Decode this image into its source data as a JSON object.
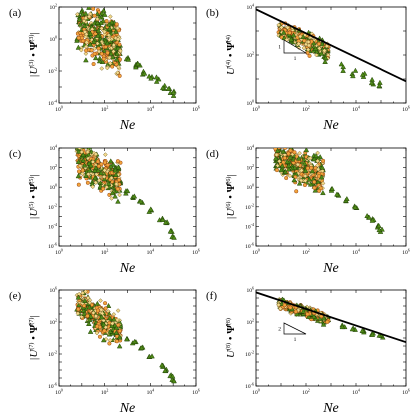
{
  "colors": {
    "triangle_fill": "#4f8a17",
    "triangle_stroke": "#1c3b05",
    "circle_fill": "#f2a33a",
    "circle_stroke": "#8a3a10",
    "diamond_fill": "#f3d98a",
    "diamond_stroke": "#6b5a20",
    "fit_line": "#000000"
  },
  "chart_data": [
    {
      "type": "scatter",
      "panel": "(a)",
      "xlabel": "Ne",
      "ylabel_lhs": "|U",
      "ylabel_sup": "(3)",
      "ylabel_rhs": "|",
      "ylabel_psi_sup": "(3)",
      "xscale": "log",
      "yscale": "log",
      "xlim": [
        1,
        1000000
      ],
      "ylim": [
        0.0001,
        100
      ],
      "x_ticks": [
        {
          "base": "10",
          "exp": "0"
        },
        {
          "base": "10",
          "exp": "2"
        },
        {
          "base": "10",
          "exp": "4"
        },
        {
          "base": "10",
          "exp": "6"
        }
      ],
      "y_ticks": [
        {
          "base": "10",
          "exp": "-4"
        },
        {
          "base": "10",
          "exp": "-2"
        },
        {
          "base": "10",
          "exp": "0"
        },
        {
          "base": "10",
          "exp": "2"
        }
      ],
      "cluster": {
        "x_range": [
          6,
          500
        ],
        "y_at_x6": 7,
        "slope": -0.75,
        "spread_decades": 2.2
      },
      "tail": [
        [
          1000,
          0.05
        ],
        [
          2000,
          0.02
        ],
        [
          3000,
          0.03
        ],
        [
          5000,
          0.008
        ],
        [
          10000,
          0.004
        ],
        [
          20000,
          0.003
        ],
        [
          40000,
          0.001
        ],
        [
          70000,
          0.0006
        ],
        [
          100000,
          0.0004
        ]
      ],
      "slope_triangle": null,
      "fit_line": null
    },
    {
      "type": "scatter",
      "panel": "(b)",
      "xlabel": "Ne",
      "ylabel_lhs": "U",
      "ylabel_sup": "(4)",
      "ylabel_rhs": "",
      "ylabel_psi_sup": "(4)",
      "xscale": "log",
      "yscale": "log",
      "xlim": [
        1,
        1000000
      ],
      "ylim": [
        1,
        10000
      ],
      "x_ticks": [
        {
          "base": "10",
          "exp": "0"
        },
        {
          "base": "10",
          "exp": "2"
        },
        {
          "base": "10",
          "exp": "4"
        },
        {
          "base": "10",
          "exp": "6"
        }
      ],
      "y_ticks": [
        {
          "base": "10",
          "exp": "0"
        },
        {
          "base": "10",
          "exp": "2"
        },
        {
          "base": "10",
          "exp": "4"
        }
      ],
      "cluster": {
        "x_range": [
          8,
          800
        ],
        "y_at_x6": 1500,
        "slope": -0.5,
        "spread_decades": 0.45
      },
      "tail": [
        [
          3000,
          30
        ],
        [
          8000,
          18
        ],
        [
          20000,
          12
        ],
        [
          50000,
          8
        ],
        [
          100000,
          6
        ]
      ],
      "slope_triangle": {
        "label_vertical": "1",
        "label_horizontal": "1"
      },
      "fit_line": {
        "x": [
          1,
          1000000
        ],
        "y": [
          8000,
          8
        ]
      }
    },
    {
      "type": "scatter",
      "panel": "(c)",
      "xlabel": "Ne",
      "ylabel_lhs": "|U",
      "ylabel_sup": "(5)",
      "ylabel_rhs": "|",
      "ylabel_psi_sup": "(5)",
      "xscale": "log",
      "yscale": "log",
      "xlim": [
        1,
        1000000
      ],
      "ylim": [
        1e-06,
        10000
      ],
      "x_ticks": [
        {
          "base": "10",
          "exp": "0"
        },
        {
          "base": "10",
          "exp": "2"
        },
        {
          "base": "10",
          "exp": "4"
        },
        {
          "base": "10",
          "exp": "6"
        }
      ],
      "y_ticks": [
        {
          "base": "10",
          "exp": "-6"
        },
        {
          "base": "10",
          "exp": "-4"
        },
        {
          "base": "10",
          "exp": "-2"
        },
        {
          "base": "10",
          "exp": "0"
        },
        {
          "base": "10",
          "exp": "2"
        },
        {
          "base": "10",
          "exp": "4"
        }
      ],
      "cluster": {
        "x_range": [
          6,
          500
        ],
        "y_at_x6": 1500,
        "slope": -1.4,
        "spread_decades": 2.4
      },
      "tail": [
        [
          1000,
          0.3
        ],
        [
          2000,
          0.1
        ],
        [
          4000,
          0.03
        ],
        [
          10000,
          0.004
        ],
        [
          30000,
          0.0005
        ],
        [
          50000,
          0.0002
        ],
        [
          80000,
          4e-05
        ],
        [
          100000,
          1e-05
        ]
      ],
      "slope_triangle": null,
      "fit_line": null
    },
    {
      "type": "scatter",
      "panel": "(d)",
      "xlabel": "Ne",
      "ylabel_lhs": "|U",
      "ylabel_sup": "(6)",
      "ylabel_rhs": "|",
      "ylabel_psi_sup": "(6)",
      "xscale": "log",
      "yscale": "log",
      "xlim": [
        1,
        1000000
      ],
      "ylim": [
        1e-06,
        10000
      ],
      "x_ticks": [
        {
          "base": "10",
          "exp": "0"
        },
        {
          "base": "10",
          "exp": "2"
        },
        {
          "base": "10",
          "exp": "4"
        },
        {
          "base": "10",
          "exp": "6"
        }
      ],
      "y_ticks": [
        {
          "base": "10",
          "exp": "-6"
        },
        {
          "base": "10",
          "exp": "-4"
        },
        {
          "base": "10",
          "exp": "-2"
        },
        {
          "base": "10",
          "exp": "0"
        },
        {
          "base": "10",
          "exp": "2"
        },
        {
          "base": "10",
          "exp": "4"
        }
      ],
      "cluster": {
        "x_range": [
          6,
          500
        ],
        "y_at_x6": 2000,
        "slope": -1.3,
        "spread_decades": 2.4
      },
      "tail": [
        [
          1000,
          0.5
        ],
        [
          2000,
          0.2
        ],
        [
          4000,
          0.05
        ],
        [
          10000,
          0.01
        ],
        [
          30000,
          0.001
        ],
        [
          50000,
          0.0005
        ],
        [
          80000,
          0.0001
        ],
        [
          100000,
          4e-05
        ]
      ],
      "slope_triangle": null,
      "fit_line": null
    },
    {
      "type": "scatter",
      "panel": "(e)",
      "xlabel": "Ne",
      "ylabel_lhs": "|U",
      "ylabel_sup": "(7)",
      "ylabel_rhs": "|",
      "ylabel_psi_sup": "(7)",
      "xscale": "log",
      "yscale": "log",
      "xlim": [
        1,
        1000000
      ],
      "ylim": [
        1e-06,
        1000000
      ],
      "x_ticks": [
        {
          "base": "10",
          "exp": "0"
        },
        {
          "base": "10",
          "exp": "2"
        },
        {
          "base": "10",
          "exp": "4"
        },
        {
          "base": "10",
          "exp": "6"
        }
      ],
      "y_ticks": [
        {
          "base": "10",
          "exp": "-6"
        },
        {
          "base": "10",
          "exp": "-2"
        },
        {
          "base": "10",
          "exp": "2"
        },
        {
          "base": "10",
          "exp": "6"
        }
      ],
      "cluster": {
        "x_range": [
          6,
          500
        ],
        "y_at_x6": 20000,
        "slope": -1.8,
        "spread_decades": 2.6
      },
      "tail": [
        [
          1000,
          1
        ],
        [
          2000,
          0.3
        ],
        [
          4000,
          0.05
        ],
        [
          10000,
          0.005
        ],
        [
          30000,
          0.0003
        ],
        [
          50000,
          0.0001
        ],
        [
          80000,
          2e-05
        ],
        [
          100000,
          5e-06
        ]
      ],
      "slope_triangle": null,
      "fit_line": null
    },
    {
      "type": "scatter",
      "panel": "(f)",
      "xlabel": "Ne",
      "ylabel_lhs": "U",
      "ylabel_sup": "(8)",
      "ylabel_rhs": "",
      "ylabel_psi_sup": "(8)",
      "xscale": "log",
      "yscale": "log",
      "xlim": [
        1,
        1000000
      ],
      "ylim": [
        1e-06,
        1000000
      ],
      "x_ticks": [
        {
          "base": "10",
          "exp": "0"
        },
        {
          "base": "10",
          "exp": "2"
        },
        {
          "base": "10",
          "exp": "4"
        },
        {
          "base": "10",
          "exp": "6"
        }
      ],
      "y_ticks": [
        {
          "base": "10",
          "exp": "-6"
        },
        {
          "base": "10",
          "exp": "-2"
        },
        {
          "base": "10",
          "exp": "2"
        },
        {
          "base": "10",
          "exp": "6"
        }
      ],
      "cluster": {
        "x_range": [
          8,
          800
        ],
        "y_at_x6": 30000,
        "slope": -1.0,
        "spread_decades": 0.8
      },
      "tail": [
        [
          3000,
          30
        ],
        [
          8000,
          12
        ],
        [
          20000,
          6
        ],
        [
          50000,
          3
        ],
        [
          100000,
          1.5
        ]
      ],
      "slope_triangle": {
        "label_vertical": "2",
        "label_horizontal": "1"
      },
      "fit_line": {
        "x": [
          1,
          1000000
        ],
        "y": [
          500000,
          0.3
        ]
      }
    }
  ]
}
